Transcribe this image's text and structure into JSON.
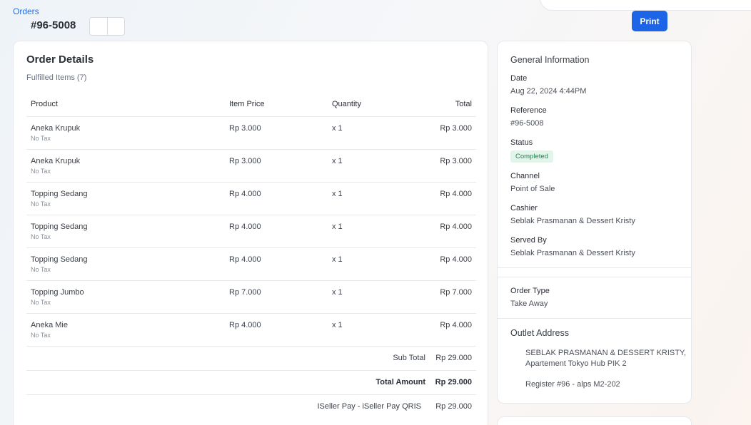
{
  "header": {
    "breadcrumb": "Orders",
    "order_number": "#96-5008",
    "print_label": "Print"
  },
  "details": {
    "title": "Order Details",
    "subtitle": "Fulfilled Items (7)",
    "columns": {
      "product": "Product",
      "price": "Item Price",
      "quantity": "Quantity",
      "total": "Total"
    },
    "items": [
      {
        "name": "Aneka Krupuk",
        "tax": "No Tax",
        "price": "Rp 3.000",
        "qty": "x 1",
        "total": "Rp 3.000"
      },
      {
        "name": "Aneka Krupuk",
        "tax": "No Tax",
        "price": "Rp 3.000",
        "qty": "x 1",
        "total": "Rp 3.000"
      },
      {
        "name": "Topping Sedang",
        "tax": "No Tax",
        "price": "Rp 4.000",
        "qty": "x 1",
        "total": "Rp 4.000"
      },
      {
        "name": "Topping Sedang",
        "tax": "No Tax",
        "price": "Rp 4.000",
        "qty": "x 1",
        "total": "Rp 4.000"
      },
      {
        "name": "Topping Sedang",
        "tax": "No Tax",
        "price": "Rp 4.000",
        "qty": "x 1",
        "total": "Rp 4.000"
      },
      {
        "name": "Topping Jumbo",
        "tax": "No Tax",
        "price": "Rp 7.000",
        "qty": "x 1",
        "total": "Rp 7.000"
      },
      {
        "name": "Aneka Mie",
        "tax": "No Tax",
        "price": "Rp 4.000",
        "qty": "x 1",
        "total": "Rp 4.000"
      }
    ],
    "subtotal_label": "Sub Total",
    "subtotal_value": "Rp 29.000",
    "total_label": "Total Amount",
    "total_value": "Rp 29.000",
    "payment_label": "ISeller Pay - iSeller Pay QRIS",
    "payment_value": "Rp 29.000"
  },
  "info": {
    "title": "General Information",
    "date_label": "Date",
    "date_value": "Aug 22, 2024 4:44PM",
    "reference_label": "Reference",
    "reference_value": "#96-5008",
    "status_label": "Status",
    "status_value": "Completed",
    "channel_label": "Channel",
    "channel_value": "Point of Sale",
    "cashier_label": "Cashier",
    "cashier_value": "Seblak Prasmanan & Dessert Kristy",
    "served_label": "Served By",
    "served_value": "Seblak Prasmanan & Dessert Kristy",
    "order_type_label": "Order Type",
    "order_type_value": "Take Away",
    "outlet_title": "Outlet Address",
    "outlet_line1": "SEBLAK PRASMANAN & DESSERT KRISTY,",
    "outlet_line2": "Apartement Tokyo Hub PIK 2",
    "register": "Register #96 - alps M2-202"
  },
  "colors": {
    "accent": "#1d64e6",
    "link": "#1f6feb",
    "status_bg": "#e1f5ea",
    "status_text": "#24824d"
  }
}
